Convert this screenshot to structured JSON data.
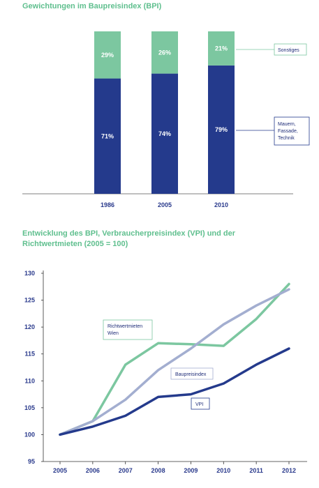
{
  "titles": {
    "chart1": "Gewichtungen im Baupreisindex (BPI)",
    "chart2": "Entwicklung des BPI, Verbraucherpreisindex (VPI) und der Richtwertmieten (2005 = 100)"
  },
  "colors": {
    "navy": "#243a8c",
    "green": "#7cc7a0",
    "lavender": "#a3aed0",
    "title": "#5fbf8e"
  },
  "chart_data": [
    {
      "type": "bar",
      "stacked": true,
      "title": "Gewichtungen im Baupreisindex (BPI)",
      "categories": [
        "1986",
        "2005",
        "2010"
      ],
      "series": [
        {
          "name": "Mauern, Fassade, Technik",
          "values": [
            71,
            74,
            79
          ],
          "labels": [
            "71%",
            "74%",
            "79%"
          ]
        },
        {
          "name": "Sonstiges",
          "values": [
            29,
            26,
            21
          ],
          "labels": [
            "29%",
            "26%",
            "21%"
          ]
        }
      ],
      "ylim": [
        0,
        100
      ]
    },
    {
      "type": "line",
      "title": "Entwicklung des BPI, Verbraucherpreisindex (VPI) und der Richtwertmieten (2005 = 100)",
      "x": [
        "2005",
        "2006",
        "2007",
        "2008",
        "2009",
        "2010",
        "2011",
        "2012"
      ],
      "ylim": [
        95,
        130
      ],
      "yticks": [
        95,
        100,
        105,
        110,
        115,
        120,
        125,
        130
      ],
      "grid": false,
      "series": [
        {
          "name": "Richtwertmieten Wien",
          "values": [
            100,
            102.5,
            113,
            117,
            116.8,
            116.5,
            121.5,
            128
          ]
        },
        {
          "name": "Baupreisindex",
          "values": [
            100,
            102.5,
            106.5,
            112,
            116,
            120.5,
            124,
            127
          ]
        },
        {
          "name": "VPI",
          "values": [
            100,
            101.5,
            103.5,
            107,
            107.5,
            109.5,
            113,
            116
          ]
        }
      ]
    }
  ]
}
